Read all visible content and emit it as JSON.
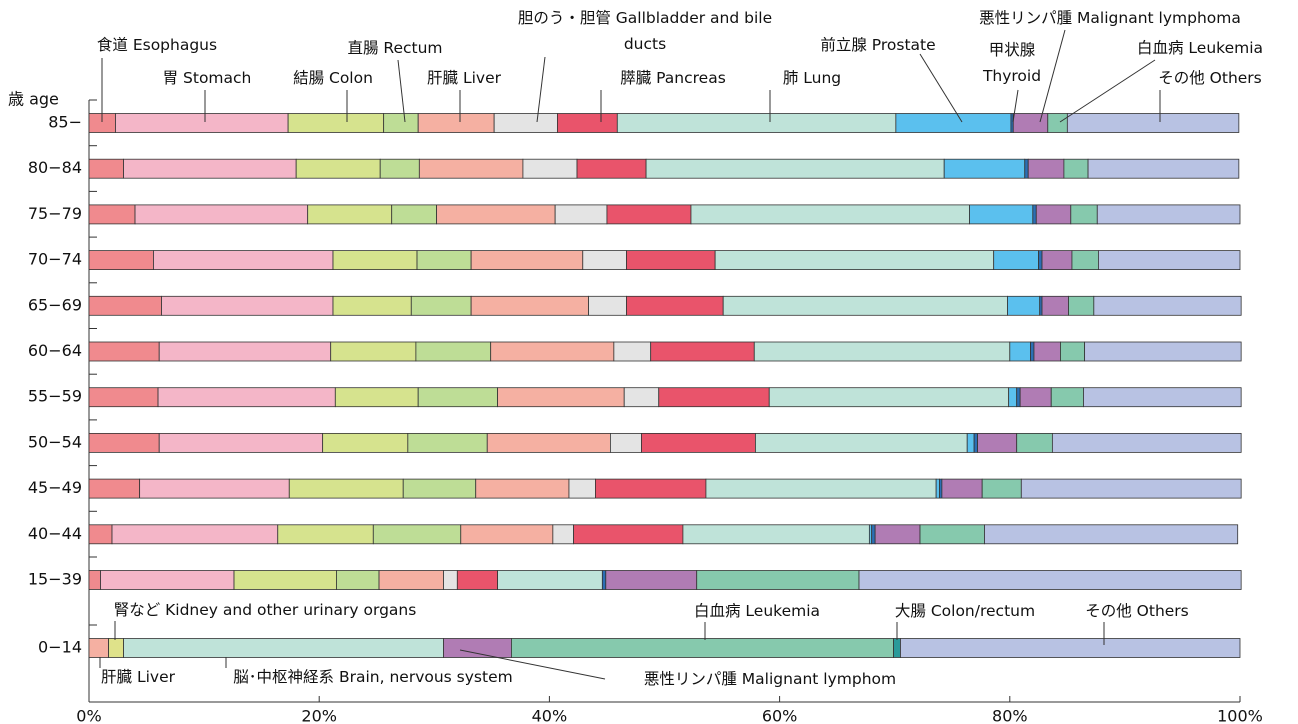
{
  "chart_data": [
    {
      "type": "bar",
      "orientation": "horizontal",
      "stacked": true,
      "ylabel": "歳 age",
      "categories": [
        "85−",
        "80−84",
        "75−79",
        "70−74",
        "65−69",
        "60−64",
        "55−59",
        "50−54",
        "45−49",
        "40−44",
        "15−39"
      ],
      "xlim": [
        0,
        100
      ],
      "xticks": [
        {
          "value": 0,
          "label": "0%"
        },
        {
          "value": 20,
          "label": "20%"
        },
        {
          "value": 40,
          "label": "40%"
        },
        {
          "value": 60,
          "label": "60%"
        },
        {
          "value": 80,
          "label": "80%"
        },
        {
          "value": 100,
          "label": "100%"
        }
      ],
      "series": [
        {
          "name": "食道 Esophagus",
          "color": "#f08a8e",
          "values": [
            2.3,
            3.0,
            4.0,
            5.6,
            6.3,
            6.1,
            6.0,
            6.1,
            4.4,
            2.0,
            1.0
          ]
        },
        {
          "name": "胃 Stomach",
          "color": "#f4b6c8",
          "values": [
            15.0,
            15.0,
            15.0,
            15.6,
            14.9,
            14.9,
            15.4,
            14.2,
            13.0,
            14.4,
            11.6
          ]
        },
        {
          "name": "結腸 Colon",
          "color": "#d6e38e",
          "values": [
            8.3,
            7.3,
            7.3,
            7.3,
            6.8,
            7.4,
            7.2,
            7.4,
            9.9,
            8.3,
            8.9
          ]
        },
        {
          "name": "直腸 Rectum",
          "color": "#bedd96",
          "values": [
            3.0,
            3.4,
            3.9,
            4.7,
            5.2,
            6.5,
            6.9,
            6.9,
            6.3,
            7.6,
            3.7
          ]
        },
        {
          "name": "肝臓 Liver",
          "color": "#f5b0a2",
          "values": [
            6.6,
            9.0,
            10.3,
            9.7,
            10.2,
            10.7,
            11.0,
            10.7,
            8.1,
            8.0,
            5.6
          ]
        },
        {
          "name": "胆のう・胆管 Gallbladder and bile ducts",
          "color": "#e4e4e4",
          "values": [
            5.5,
            4.7,
            4.5,
            3.8,
            3.3,
            3.2,
            3.0,
            2.7,
            2.3,
            1.8,
            1.2
          ]
        },
        {
          "name": "膵臓 Pancreas",
          "color": "#e9546b",
          "values": [
            5.2,
            6.0,
            7.3,
            7.7,
            8.4,
            9.0,
            9.6,
            9.9,
            9.6,
            9.5,
            3.5
          ]
        },
        {
          "name": "肺 Lung",
          "color": "#bfe3d9",
          "values": [
            24.2,
            25.9,
            24.2,
            24.2,
            24.7,
            22.2,
            20.8,
            18.4,
            20.0,
            16.2,
            9.1
          ]
        },
        {
          "name": "前立腺 Prostate",
          "color": "#5bc0ee",
          "values": [
            10.0,
            7.0,
            5.5,
            3.9,
            2.8,
            1.8,
            0.7,
            0.6,
            0.3,
            0.2,
            0
          ]
        },
        {
          "name": "甲状腺 Thyroid",
          "color": "#2b6fb4",
          "values": [
            0.2,
            0.3,
            0.3,
            0.3,
            0.2,
            0.3,
            0.3,
            0.3,
            0.2,
            0.3,
            0.3
          ]
        },
        {
          "name": "悪性リンパ腫 Malignant lymphoma",
          "color": "#b07cb4",
          "values": [
            3.0,
            3.1,
            3.0,
            2.6,
            2.3,
            2.3,
            2.7,
            3.4,
            3.5,
            3.9,
            7.9
          ]
        },
        {
          "name": "白血病 Leukemia",
          "color": "#86c9ad",
          "values": [
            1.7,
            2.1,
            2.3,
            2.3,
            2.2,
            2.1,
            2.8,
            3.1,
            3.4,
            5.6,
            14.1
          ]
        },
        {
          "name": "その他 Others",
          "color": "#b8c2e3",
          "values": [
            14.9,
            13.1,
            12.4,
            12.3,
            12.8,
            13.6,
            13.7,
            16.4,
            19.1,
            22.0,
            33.2
          ]
        }
      ]
    },
    {
      "type": "bar",
      "orientation": "horizontal",
      "stacked": true,
      "categories": [
        "0−14"
      ],
      "series": [
        {
          "name": "肝臓 Liver",
          "color": "#f5b0a2",
          "values": [
            1.7
          ]
        },
        {
          "name": "腎など Kidney and other urinary organs",
          "color": "#dfe28a",
          "values": [
            1.3
          ]
        },
        {
          "name": "脳･中枢神経系 Brain, nervous system",
          "color": "#bfe3d9",
          "values": [
            27.8
          ]
        },
        {
          "name": "悪性リンパ腫 Malignant lymphom",
          "color": "#b07cb4",
          "values": [
            5.9
          ]
        },
        {
          "name": "白血病 Leukemia",
          "color": "#86c9ad",
          "values": [
            33.2
          ]
        },
        {
          "name": "大腸 Colon/rectum",
          "color": "#2a9a9a",
          "values": [
            0.6
          ]
        },
        {
          "name": "その他 Others",
          "color": "#b8c2e3",
          "values": [
            29.5
          ]
        }
      ]
    }
  ]
}
